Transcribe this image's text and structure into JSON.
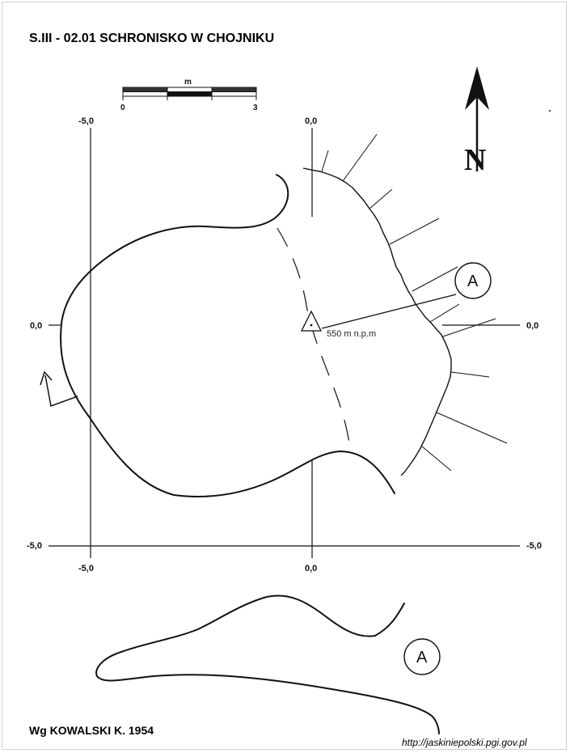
{
  "title": "S.III - 02.01  SCHRONISKO W CHOJNIKU",
  "credit": "Wg KOWALSKI K. 1954",
  "source_url": "http://jaskiniepolski.pgi.gov.pl",
  "scale_bar": {
    "unit": "m",
    "start": "0",
    "end": "3"
  },
  "north_label": "N",
  "elevation_label": "550 m n.p.m",
  "section_marker": "A",
  "section_marker_profile": "A",
  "grid_labels": {
    "x_top_left": "-5,0",
    "x_top_center": "0,0",
    "x_bottom_left": "-5,0",
    "x_bottom_center": "0,0",
    "y_left_middle": "0,0",
    "y_right_middle": "0,0",
    "y_left_bottom": "-5,0",
    "y_right_bottom": "-5,0"
  },
  "colors": {
    "ink": "#111111",
    "background": "#ffffff",
    "frame": "#cfcfcf"
  }
}
